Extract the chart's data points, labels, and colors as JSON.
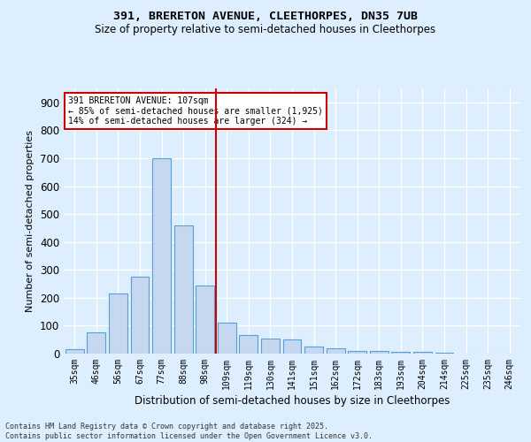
{
  "title_line1": "391, BRERETON AVENUE, CLEETHORPES, DN35 7UB",
  "title_line2": "Size of property relative to semi-detached houses in Cleethorpes",
  "categories": [
    "35sqm",
    "46sqm",
    "56sqm",
    "67sqm",
    "77sqm",
    "88sqm",
    "98sqm",
    "109sqm",
    "119sqm",
    "130sqm",
    "141sqm",
    "151sqm",
    "162sqm",
    "172sqm",
    "183sqm",
    "193sqm",
    "204sqm",
    "214sqm",
    "225sqm",
    "235sqm",
    "246sqm"
  ],
  "values": [
    15,
    75,
    215,
    275,
    700,
    460,
    245,
    110,
    65,
    55,
    50,
    25,
    18,
    10,
    10,
    5,
    5,
    2,
    1,
    1,
    1
  ],
  "bar_color": "#c5d8f0",
  "bar_edge_color": "#5a9fd4",
  "background_color": "#ddeeff",
  "grid_color": "#ffffff",
  "ylabel": "Number of semi-detached properties",
  "xlabel": "Distribution of semi-detached houses by size in Cleethorpes",
  "ylim": [
    0,
    950
  ],
  "yticks": [
    0,
    100,
    200,
    300,
    400,
    500,
    600,
    700,
    800,
    900
  ],
  "vline_index": 7,
  "vline_color": "#cc0000",
  "annotation_title": "391 BRERETON AVENUE: 107sqm",
  "annotation_line1": "← 85% of semi-detached houses are smaller (1,925)",
  "annotation_line2": "14% of semi-detached houses are larger (324) →",
  "annotation_box_color": "#ffffff",
  "annotation_box_edge": "#cc0000",
  "footer_line1": "Contains HM Land Registry data © Crown copyright and database right 2025.",
  "footer_line2": "Contains public sector information licensed under the Open Government Licence v3.0."
}
